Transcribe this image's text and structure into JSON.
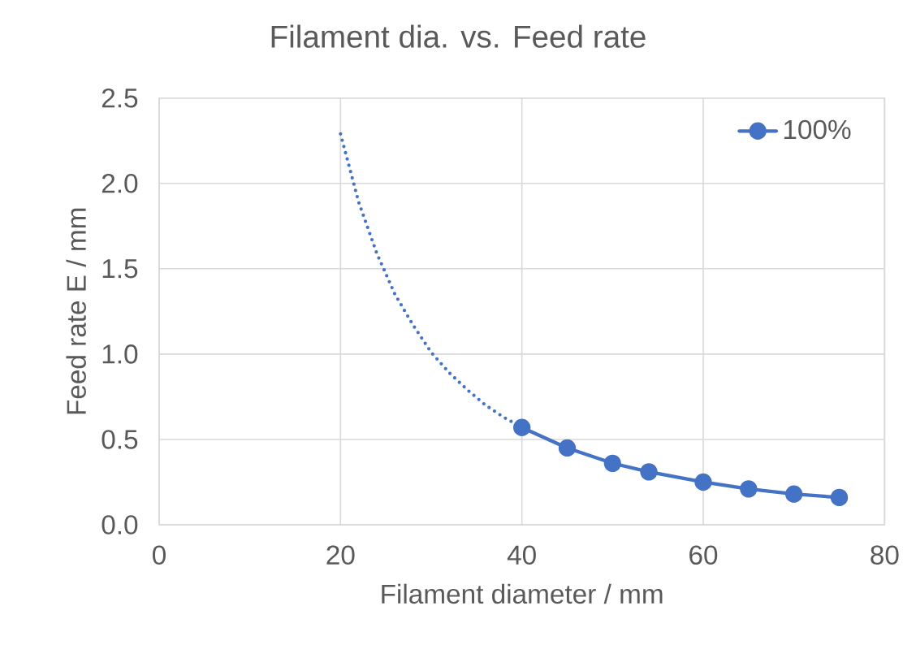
{
  "chart_data": {
    "type": "line",
    "title": "Filament dia. vs. Feed rate",
    "xlabel": "Filament diameter / mm",
    "ylabel": "Feed rate E / mm",
    "xlim": [
      0,
      80
    ],
    "xticks": [
      0,
      20,
      40,
      60,
      80
    ],
    "ylim": [
      0,
      2.5
    ],
    "yticks": [
      {
        "value": 0,
        "label": "0.0"
      },
      {
        "value": 0.5,
        "label": "0.5"
      },
      {
        "value": 1,
        "label": "1.0"
      },
      {
        "value": 1.5,
        "label": "1.5"
      },
      {
        "value": 2,
        "label": "2.0"
      },
      {
        "value": 2.5,
        "label": "2.5"
      }
    ],
    "grid": true,
    "legend": "top right",
    "series": [
      {
        "type": "line",
        "color": "#4472c4",
        "marker": "none",
        "line_style": "dotted",
        "x": [
          20,
          22,
          24,
          26,
          28,
          30,
          32,
          34,
          36,
          38,
          40
        ],
        "values": [
          2.29,
          1.89,
          1.59,
          1.35,
          1.17,
          1.01,
          0.89,
          0.79,
          0.7,
          0.63,
          0.57
        ]
      },
      {
        "type": "line",
        "name": "100%",
        "color": "#4472c4",
        "marker": "circle",
        "line_style": "solid",
        "x": [
          40,
          45,
          50,
          54,
          60,
          65,
          70,
          75
        ],
        "values": [
          0.57,
          0.45,
          0.36,
          0.31,
          0.25,
          0.21,
          0.18,
          0.16
        ]
      }
    ]
  }
}
